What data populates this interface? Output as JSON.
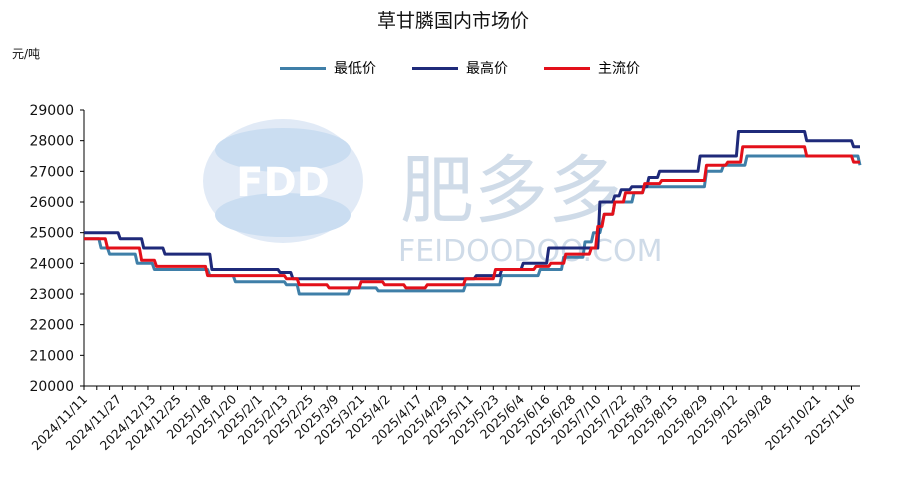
{
  "chart_data": {
    "type": "line",
    "title": "草甘膦国内市场价",
    "ylabel": "元/吨",
    "ylim": [
      20000,
      29000
    ],
    "yticks": [
      20000,
      21000,
      22000,
      23000,
      24000,
      25000,
      26000,
      27000,
      28000,
      29000
    ],
    "xlim": [
      "2024/11/11",
      "2025/11/10"
    ],
    "xticks": [
      "2024/11/11",
      "2024/11/27",
      "2024/12/13",
      "2024/12/25",
      "2025/1/8",
      "2025/1/20",
      "2025/2/1",
      "2025/2/13",
      "2025/2/25",
      "2025/3/9",
      "2025/3/21",
      "2025/4/2",
      "2025/4/17",
      "2025/4/29",
      "2025/5/11",
      "2025/5/23",
      "2025/6/4",
      "2025/6/16",
      "2025/6/28",
      "2025/7/10",
      "2025/7/22",
      "2025/8/3",
      "2025/8/15",
      "2025/8/29",
      "2025/9/12",
      "2025/9/28",
      "2025/10/21",
      "2025/11/6"
    ],
    "grid": false,
    "legend_position": "top",
    "series": [
      {
        "name": "最低价",
        "color": "#3f7fa8",
        "points": [
          [
            "2024/11/11",
            24800
          ],
          [
            "2024/11/18",
            24800
          ],
          [
            "2024/11/19",
            24500
          ],
          [
            "2024/11/22",
            24500
          ],
          [
            "2024/11/23",
            24300
          ],
          [
            "2024/12/5",
            24300
          ],
          [
            "2024/12/6",
            24000
          ],
          [
            "2024/12/13",
            24000
          ],
          [
            "2024/12/14",
            23800
          ],
          [
            "2025/1/8",
            23800
          ],
          [
            "2025/1/9",
            23600
          ],
          [
            "2025/1/20",
            23600
          ],
          [
            "2025/1/21",
            23400
          ],
          [
            "2025/2/13",
            23400
          ],
          [
            "2025/2/14",
            23300
          ],
          [
            "2025/2/19",
            23300
          ],
          [
            "2025/2/20",
            23000
          ],
          [
            "2025/3/15",
            23000
          ],
          [
            "2025/3/16",
            23200
          ],
          [
            "2025/3/28",
            23200
          ],
          [
            "2025/3/29",
            23100
          ],
          [
            "2025/5/8",
            23100
          ],
          [
            "2025/5/9",
            23300
          ],
          [
            "2025/5/25",
            23300
          ],
          [
            "2025/5/26",
            23600
          ],
          [
            "2025/6/12",
            23600
          ],
          [
            "2025/6/13",
            23800
          ],
          [
            "2025/6/23",
            23800
          ],
          [
            "2025/6/24",
            24200
          ],
          [
            "2025/7/3",
            24200
          ],
          [
            "2025/7/4",
            24700
          ],
          [
            "2025/7/7",
            24700
          ],
          [
            "2025/7/8",
            25000
          ],
          [
            "2025/7/11",
            25000
          ],
          [
            "2025/7/12",
            25300
          ],
          [
            "2025/7/13",
            25600
          ],
          [
            "2025/7/17",
            25600
          ],
          [
            "2025/7/18",
            26000
          ],
          [
            "2025/7/26",
            26000
          ],
          [
            "2025/7/27",
            26300
          ],
          [
            "2025/7/31",
            26300
          ],
          [
            "2025/8/1",
            26500
          ],
          [
            "2025/8/29",
            26500
          ],
          [
            "2025/8/30",
            27000
          ],
          [
            "2025/9/6",
            27000
          ],
          [
            "2025/9/7",
            27200
          ],
          [
            "2025/9/17",
            27200
          ],
          [
            "2025/9/18",
            27500
          ],
          [
            "2025/10/21",
            27500
          ],
          [
            "2025/11/9",
            27500
          ],
          [
            "2025/11/10",
            27200
          ]
        ]
      },
      {
        "name": "最高价",
        "color": "#1f2a7a",
        "points": [
          [
            "2024/11/11",
            25000
          ],
          [
            "2024/11/27",
            25000
          ],
          [
            "2024/11/28",
            24800
          ],
          [
            "2024/12/8",
            24800
          ],
          [
            "2024/12/9",
            24500
          ],
          [
            "2024/12/18",
            24500
          ],
          [
            "2024/12/19",
            24300
          ],
          [
            "2025/1/9",
            24300
          ],
          [
            "2025/1/10",
            23800
          ],
          [
            "2025/2/10",
            23800
          ],
          [
            "2025/2/11",
            23700
          ],
          [
            "2025/2/16",
            23700
          ],
          [
            "2025/2/17",
            23500
          ],
          [
            "2025/5/13",
            23500
          ],
          [
            "2025/5/14",
            23600
          ],
          [
            "2025/5/25",
            23600
          ],
          [
            "2025/5/26",
            23800
          ],
          [
            "2025/6/4",
            23800
          ],
          [
            "2025/6/5",
            24000
          ],
          [
            "2025/6/16",
            24000
          ],
          [
            "2025/6/17",
            24500
          ],
          [
            "2025/7/10",
            24500
          ],
          [
            "2025/7/11",
            26000
          ],
          [
            "2025/7/17",
            26000
          ],
          [
            "2025/7/18",
            26200
          ],
          [
            "2025/7/20",
            26200
          ],
          [
            "2025/7/21",
            26400
          ],
          [
            "2025/7/25",
            26400
          ],
          [
            "2025/7/26",
            26500
          ],
          [
            "2025/8/2",
            26500
          ],
          [
            "2025/8/3",
            26800
          ],
          [
            "2025/8/7",
            26800
          ],
          [
            "2025/8/8",
            27000
          ],
          [
            "2025/8/26",
            27000
          ],
          [
            "2025/8/27",
            27500
          ],
          [
            "2025/9/13",
            27500
          ],
          [
            "2025/9/14",
            28300
          ],
          [
            "2025/10/15",
            28300
          ],
          [
            "2025/10/16",
            28000
          ],
          [
            "2025/11/6",
            28000
          ],
          [
            "2025/11/7",
            27800
          ],
          [
            "2025/11/10",
            27800
          ]
        ]
      },
      {
        "name": "主流价",
        "color": "#e3101a",
        "points": [
          [
            "2024/11/11",
            24800
          ],
          [
            "2024/11/21",
            24800
          ],
          [
            "2024/11/22",
            24500
          ],
          [
            "2024/12/7",
            24500
          ],
          [
            "2024/12/8",
            24100
          ],
          [
            "2024/12/14",
            24100
          ],
          [
            "2024/12/15",
            23900
          ],
          [
            "2025/1/7",
            23900
          ],
          [
            "2025/1/8",
            23600
          ],
          [
            "2025/1/20",
            23600
          ],
          [
            "2025/1/21",
            23600
          ],
          [
            "2025/2/13",
            23600
          ],
          [
            "2025/2/14",
            23500
          ],
          [
            "2025/2/19",
            23500
          ],
          [
            "2025/2/20",
            23300
          ],
          [
            "2025/3/5",
            23300
          ],
          [
            "2025/3/6",
            23200
          ],
          [
            "2025/3/20",
            23200
          ],
          [
            "2025/3/21",
            23400
          ],
          [
            "2025/3/31",
            23400
          ],
          [
            "2025/4/1",
            23300
          ],
          [
            "2025/4/10",
            23300
          ],
          [
            "2025/4/11",
            23200
          ],
          [
            "2025/4/20",
            23200
          ],
          [
            "2025/4/21",
            23300
          ],
          [
            "2025/5/8",
            23300
          ],
          [
            "2025/5/9",
            23500
          ],
          [
            "2025/5/22",
            23500
          ],
          [
            "2025/5/23",
            23800
          ],
          [
            "2025/6/10",
            23800
          ],
          [
            "2025/6/11",
            23900
          ],
          [
            "2025/6/17",
            23900
          ],
          [
            "2025/6/18",
            24000
          ],
          [
            "2025/6/24",
            24000
          ],
          [
            "2025/6/25",
            24300
          ],
          [
            "2025/7/6",
            24300
          ],
          [
            "2025/7/7",
            24500
          ],
          [
            "2025/7/9",
            24500
          ],
          [
            "2025/7/10",
            25200
          ],
          [
            "2025/7/12",
            25200
          ],
          [
            "2025/7/13",
            25600
          ],
          [
            "2025/7/17",
            25600
          ],
          [
            "2025/7/18",
            26000
          ],
          [
            "2025/7/22",
            26000
          ],
          [
            "2025/7/23",
            26300
          ],
          [
            "2025/7/31",
            26300
          ],
          [
            "2025/8/1",
            26600
          ],
          [
            "2025/8/8",
            26600
          ],
          [
            "2025/8/9",
            26700
          ],
          [
            "2025/8/29",
            26700
          ],
          [
            "2025/8/30",
            27200
          ],
          [
            "2025/9/8",
            27200
          ],
          [
            "2025/9/9",
            27300
          ],
          [
            "2025/9/15",
            27300
          ],
          [
            "2025/9/16",
            27800
          ],
          [
            "2025/10/15",
            27800
          ],
          [
            "2025/10/16",
            27500
          ],
          [
            "2025/11/6",
            27500
          ],
          [
            "2025/11/7",
            27300
          ],
          [
            "2025/11/10",
            27300
          ]
        ]
      }
    ]
  },
  "watermark": {
    "logo_text": "FDD",
    "brand_cn": "肥多多",
    "brand_en": "FEIDOODOO.COM"
  }
}
